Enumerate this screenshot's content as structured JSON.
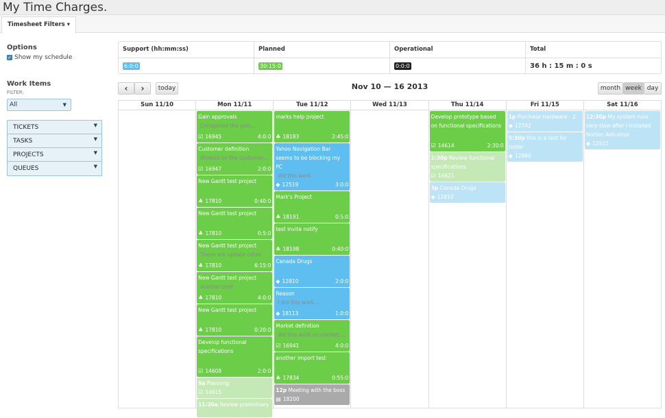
{
  "app": {
    "title": "My Time Charges."
  },
  "tabs": [
    {
      "label": "Timesheet Filters",
      "caret": "▾"
    }
  ],
  "options": {
    "heading": "Options",
    "show_schedule": {
      "label": "Show my schedule",
      "checked": true
    }
  },
  "work_items": {
    "heading": "Work Items",
    "filter_label": "FILTER:",
    "filter_value": "All",
    "sections": [
      {
        "label": "TICKETS"
      },
      {
        "label": "TASKS"
      },
      {
        "label": "PROJECTS"
      },
      {
        "label": "QUEUES"
      }
    ]
  },
  "summary": {
    "columns": [
      {
        "header": "Support (hh:mm:ss)",
        "value": "6:0:0",
        "color": "#5ebeef"
      },
      {
        "header": "Planned",
        "value": "30:15:0",
        "color": "#6ccd48"
      },
      {
        "header": "Operational",
        "value": "0:0:0",
        "color": "#222222"
      },
      {
        "header": "Total",
        "value": "36 h : 15 m : 0 s"
      }
    ]
  },
  "toolbar": {
    "prev": "‹",
    "next": "›",
    "today": "today",
    "range": "Nov 10 — 16 2013",
    "views": [
      "month",
      "week",
      "day"
    ],
    "active_view": "week"
  },
  "icons": {
    "task": "check-square-icon",
    "project": "sitemap-icon",
    "ticket": "tag-icon",
    "meeting": "file-icon"
  },
  "calendar": {
    "days": [
      {
        "label": "Sun 11/10",
        "events": []
      },
      {
        "label": "Mon 11/11",
        "events": [
          {
            "title": "Gain approvals",
            "note": "Completed the gain....",
            "type": "task",
            "id": "16945",
            "duration": "4:0:0",
            "color": "green"
          },
          {
            "title": "Customer definition",
            "note": "Worked on the customer....",
            "type": "task",
            "id": "16947",
            "duration": "2:0:0",
            "color": "green"
          },
          {
            "title": "New Gantt test project",
            "type": "project",
            "id": "17810",
            "duration": "0:40:0",
            "color": "green"
          },
          {
            "title": "New Gantt test project",
            "type": "project",
            "id": "17810",
            "duration": "0:5:0",
            "color": "green"
          },
          {
            "title": "New Gantt test project",
            "note": "These are update notes",
            "type": "project",
            "id": "17810",
            "duration": "6:15:0",
            "color": "green"
          },
          {
            "title": "New Gantt test project",
            "note": "another post",
            "type": "project",
            "id": "17810",
            "duration": "4:0:0",
            "color": "green"
          },
          {
            "title": "New Gantt test project",
            "type": "project",
            "id": "17810",
            "duration": "0:20:0",
            "color": "green"
          },
          {
            "title": "Develop functional specifications",
            "type": "task",
            "id": "14608",
            "duration": "2:0:0",
            "color": "green",
            "tall": true
          },
          {
            "time": "9a",
            "title": "Planning",
            "type": "task",
            "id": "14615",
            "color": "lgreen"
          },
          {
            "time": "11:30a",
            "title": "Review preliminary",
            "type": "task",
            "color": "lgreen"
          }
        ]
      },
      {
        "label": "Tue 11/12",
        "events": [
          {
            "title": "marks help project",
            "type": "project",
            "id": "18183",
            "duration": "2:45:0",
            "color": "green"
          },
          {
            "title": "Yahoo Navigation Bar seems to be blocking my PC",
            "note": "did this work",
            "type": "ticket",
            "id": "12519",
            "duration": "3:0:0",
            "color": "blue"
          },
          {
            "title": "Mark's Project",
            "type": "project",
            "id": "18191",
            "duration": "0:5:0",
            "color": "green"
          },
          {
            "title": "test invite notify",
            "type": "project",
            "id": "18198",
            "duration": "0:40:0",
            "color": "green"
          },
          {
            "title": "Canada Drugs",
            "type": "ticket",
            "id": "12810",
            "duration": "2:0:0",
            "color": "blue"
          },
          {
            "title": "Reason",
            "note": "I did this work....",
            "type": "ticket",
            "id": "18113",
            "duration": "1:0:0",
            "color": "blue"
          },
          {
            "title": "Market definition",
            "note": "did this work on market....",
            "type": "task",
            "id": "16941",
            "duration": "4:0:0",
            "color": "green"
          },
          {
            "title": "another import test",
            "type": "project",
            "id": "17834",
            "duration": "0:55:0",
            "color": "green"
          },
          {
            "time": "12p",
            "title": "Meeting with the boss",
            "type": "meeting",
            "id": "18200",
            "color": "gray"
          }
        ]
      },
      {
        "label": "Wed 11/13",
        "events": []
      },
      {
        "label": "Thu 11/14",
        "events": [
          {
            "title": "Develop prototype based on functional specifications",
            "type": "task",
            "id": "14614",
            "duration": "2:30:0",
            "color": "green",
            "tall": true
          },
          {
            "time": "1:30p",
            "title": "Review functional specifications",
            "type": "task",
            "id": "14621",
            "color": "lgreen"
          },
          {
            "time": "3p",
            "title": "Canada Drugs",
            "type": "ticket",
            "id": "12810",
            "color": "lblue"
          }
        ]
      },
      {
        "label": "Fri 11/15",
        "events": [
          {
            "time": "1p",
            "title": "Purchase Hardware - 2",
            "type": "ticket",
            "id": "12742",
            "color": "lblue"
          },
          {
            "time": "5:30p",
            "title": "this is a test for roster",
            "type": "ticket",
            "id": "12860",
            "color": "lblue"
          }
        ]
      },
      {
        "label": "Sat 11/16",
        "events": [
          {
            "time": "12:30p",
            "title": "My system runs very slow after I installed Norton Avti-virus",
            "type": "ticket",
            "id": "12521",
            "color": "lblue"
          }
        ]
      }
    ]
  }
}
